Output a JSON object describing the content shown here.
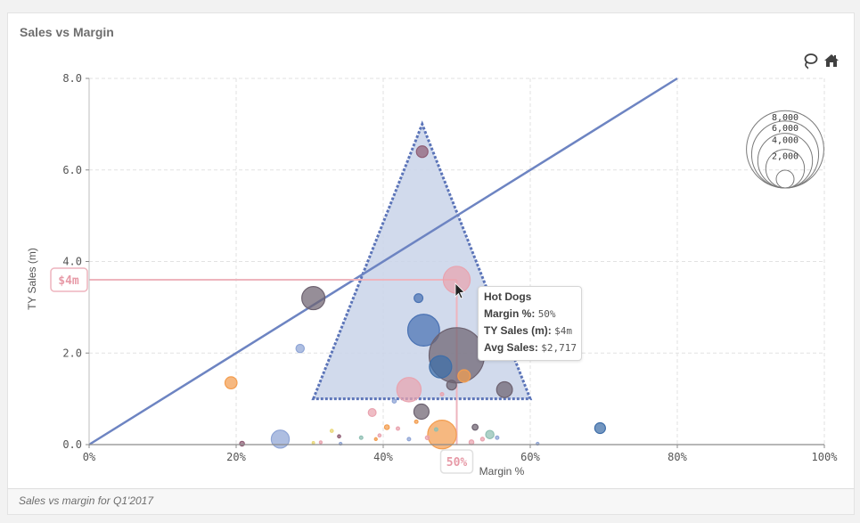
{
  "title": "Sales vs Margin",
  "footnote": "Sales vs margin for Q1'2017",
  "tools": {
    "lasso_icon": "lasso-icon",
    "home_icon": "home-icon"
  },
  "colors": {
    "trend": "#6d84c2",
    "region_fill": "#c9d3e9",
    "region_stroke": "#5b74b8",
    "highlight": "#eeb4bd",
    "highlight_text": "#e79aa7",
    "grid": "#e2e2e2",
    "axis_text": "#555555"
  },
  "chart_data": {
    "type": "scatter",
    "title": "Sales vs Margin",
    "xlabel": "Margin %",
    "ylabel": "TY Sales (m)",
    "xlim": [
      0,
      1
    ],
    "ylim": [
      0,
      8
    ],
    "xticks": [
      "0%",
      "20%",
      "40%",
      "60%",
      "80%",
      "100%"
    ],
    "yticks": [
      "0.0",
      "2.0",
      "4.0",
      "6.0",
      "8.0"
    ],
    "grid": true,
    "size_legend": {
      "placement": "top-right",
      "labels": [
        "8,000",
        "6,000",
        "4,000",
        "2,000"
      ],
      "values": [
        8000,
        6000,
        4000,
        2000
      ]
    },
    "trend_line": {
      "x": [
        0,
        0.8
      ],
      "y": [
        0,
        8
      ]
    },
    "selection_region": {
      "x": [
        0.305,
        0.453,
        0.6
      ],
      "y": [
        1.0,
        7.0,
        1.0
      ]
    },
    "highlight": {
      "x_label": "50%",
      "y_label": "$4m",
      "x": 0.5,
      "y": 3.6
    },
    "tooltip": {
      "name": "Hot Dogs",
      "rows": [
        {
          "label": "Margin %:",
          "value": "50%"
        },
        {
          "label": "TY Sales (m):",
          "value": "$4m"
        },
        {
          "label": "Avg Sales:",
          "value": "$2,717"
        }
      ]
    },
    "points": [
      {
        "x": 0.453,
        "y": 6.4,
        "size": 350,
        "color": "#8f5d74"
      },
      {
        "x": 0.305,
        "y": 3.2,
        "size": 1400,
        "color": "#6d6270"
      },
      {
        "x": 0.448,
        "y": 3.2,
        "size": 200,
        "color": "#4a72b3"
      },
      {
        "x": 0.5,
        "y": 3.6,
        "size": 1900,
        "color": "#e9a3af"
      },
      {
        "x": 0.455,
        "y": 2.5,
        "size": 2650,
        "color": "#4a72b3"
      },
      {
        "x": 0.5,
        "y": 1.95,
        "size": 8000,
        "color": "#6d6270"
      },
      {
        "x": 0.478,
        "y": 1.7,
        "size": 1300,
        "color": "#3d6da8"
      },
      {
        "x": 0.493,
        "y": 1.3,
        "size": 250,
        "color": "#6d6270"
      },
      {
        "x": 0.51,
        "y": 1.5,
        "size": 400,
        "color": "#f39d4f"
      },
      {
        "x": 0.435,
        "y": 1.2,
        "size": 1550,
        "color": "#e9a3af"
      },
      {
        "x": 0.565,
        "y": 1.2,
        "size": 650,
        "color": "#6d6270"
      },
      {
        "x": 0.287,
        "y": 2.1,
        "size": 180,
        "color": "#8fa5d6"
      },
      {
        "x": 0.193,
        "y": 1.35,
        "size": 380,
        "color": "#f39d4f"
      },
      {
        "x": 0.452,
        "y": 0.72,
        "size": 600,
        "color": "#6d6270"
      },
      {
        "x": 0.385,
        "y": 0.7,
        "size": 160,
        "color": "#e9a3af"
      },
      {
        "x": 0.48,
        "y": 0.22,
        "size": 2150,
        "color": "#f39d4f"
      },
      {
        "x": 0.26,
        "y": 0.12,
        "size": 850,
        "color": "#8fa5d6"
      },
      {
        "x": 0.695,
        "y": 0.36,
        "size": 300,
        "color": "#3d6da8"
      },
      {
        "x": 0.405,
        "y": 0.38,
        "size": 60,
        "color": "#f39d4f"
      },
      {
        "x": 0.545,
        "y": 0.22,
        "size": 180,
        "color": "#8fbfb3"
      },
      {
        "x": 0.525,
        "y": 0.38,
        "size": 90,
        "color": "#6d6270"
      },
      {
        "x": 0.42,
        "y": 0.35,
        "size": 30,
        "color": "#e9a3af"
      },
      {
        "x": 0.445,
        "y": 0.5,
        "size": 30,
        "color": "#f39d4f"
      },
      {
        "x": 0.395,
        "y": 0.2,
        "size": 25,
        "color": "#e9a3af"
      },
      {
        "x": 0.37,
        "y": 0.15,
        "size": 30,
        "color": "#8fbfb3"
      },
      {
        "x": 0.34,
        "y": 0.18,
        "size": 25,
        "color": "#8f5d74"
      },
      {
        "x": 0.33,
        "y": 0.3,
        "size": 25,
        "color": "#e9d87a"
      },
      {
        "x": 0.315,
        "y": 0.05,
        "size": 20,
        "color": "#e9a3af"
      },
      {
        "x": 0.472,
        "y": 0.33,
        "size": 30,
        "color": "#8fbfb3"
      },
      {
        "x": 0.46,
        "y": 0.15,
        "size": 40,
        "color": "#e9a3af"
      },
      {
        "x": 0.435,
        "y": 0.12,
        "size": 30,
        "color": "#8fa5d6"
      },
      {
        "x": 0.535,
        "y": 0.12,
        "size": 35,
        "color": "#e9a3af"
      },
      {
        "x": 0.555,
        "y": 0.15,
        "size": 30,
        "color": "#8fa5d6"
      },
      {
        "x": 0.52,
        "y": 0.05,
        "size": 60,
        "color": "#e9a3af"
      },
      {
        "x": 0.39,
        "y": 0.12,
        "size": 20,
        "color": "#f39d4f"
      },
      {
        "x": 0.342,
        "y": 0.02,
        "size": 20,
        "color": "#8fa5d6"
      },
      {
        "x": 0.208,
        "y": 0.02,
        "size": 60,
        "color": "#8f5d74"
      },
      {
        "x": 0.61,
        "y": 0.02,
        "size": 20,
        "color": "#8fa5d6"
      },
      {
        "x": 0.305,
        "y": 0.04,
        "size": 15,
        "color": "#e9d87a"
      },
      {
        "x": 0.48,
        "y": 1.1,
        "size": 30,
        "color": "#e9a3af"
      },
      {
        "x": 0.415,
        "y": 0.95,
        "size": 40,
        "color": "#8fa5d6"
      }
    ]
  }
}
